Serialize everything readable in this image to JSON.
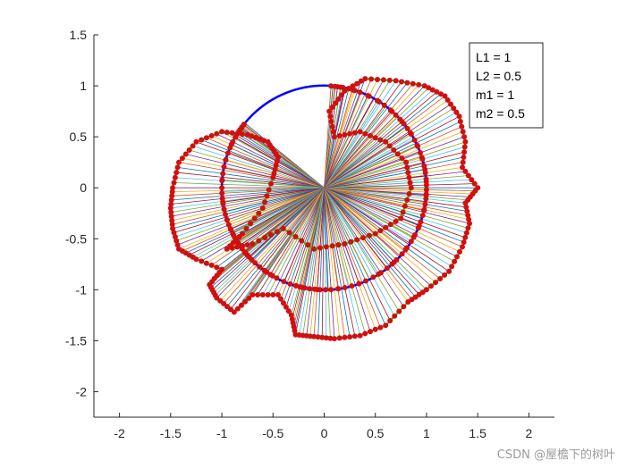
{
  "chart_data": {
    "type": "line",
    "title": "",
    "xlabel": "",
    "ylabel": "",
    "xlim": [
      -2.25,
      2.25
    ],
    "ylim": [
      -2.25,
      1.5
    ],
    "x_ticks": [
      -2,
      -1.5,
      -1,
      -0.5,
      0,
      0.5,
      1,
      1.5,
      2
    ],
    "x_tick_labels": [
      "-2",
      "-1.5",
      "-1",
      "-0.5",
      "0",
      "0.5",
      "1",
      "1.5",
      "2"
    ],
    "y_ticks": [
      1.5,
      1,
      0.5,
      0,
      -0.5,
      -1,
      -1.5,
      -2
    ],
    "y_tick_labels": [
      "1.5",
      "1",
      "0.5",
      "0",
      "-0.5",
      "-1",
      "-1.5",
      "-2"
    ],
    "grid": false,
    "legend_position": "top-right",
    "annotation_lines": [
      "L1 = 1",
      "L2 = 0.5",
      "m1 = 1",
      "m2 = 0.5"
    ],
    "parameters": {
      "L1": 1,
      "L2": 0.5,
      "m1": 1,
      "m2": 0.5
    },
    "pivot": [
      0,
      0
    ],
    "series": [
      {
        "kind": "circle",
        "center": [
          0,
          0
        ],
        "radius": 1,
        "color": "#0000ff"
      },
      {
        "kind": "trajectory",
        "color": "#00e000",
        "points": [
          [
            0.4,
            1.07
          ],
          [
            0.7,
            1.05
          ],
          [
            0.98,
            1.0
          ],
          [
            1.18,
            0.9
          ],
          [
            1.32,
            0.7
          ],
          [
            1.38,
            0.45
          ],
          [
            1.35,
            0.2
          ],
          [
            1.5,
            0.0
          ],
          [
            1.38,
            -0.15
          ],
          [
            1.42,
            -0.35
          ],
          [
            1.35,
            -0.58
          ],
          [
            1.22,
            -0.82
          ],
          [
            1.0,
            -1.0
          ],
          [
            0.82,
            -1.12
          ],
          [
            0.6,
            -1.35
          ],
          [
            0.35,
            -1.45
          ],
          [
            0.1,
            -1.48
          ],
          [
            -0.1,
            -1.46
          ],
          [
            -0.28,
            -1.44
          ],
          [
            -0.32,
            -1.25
          ],
          [
            -0.45,
            -1.05
          ],
          [
            -0.7,
            -1.05
          ],
          [
            -0.88,
            -1.22
          ],
          [
            -1.05,
            -1.08
          ],
          [
            -1.12,
            -0.95
          ],
          [
            -1.0,
            -0.8
          ],
          [
            -1.25,
            -0.7
          ],
          [
            -1.42,
            -0.6
          ],
          [
            -1.48,
            -0.4
          ],
          [
            -1.5,
            -0.2
          ],
          [
            -1.48,
            0.0
          ],
          [
            -1.42,
            0.25
          ],
          [
            -1.25,
            0.45
          ],
          [
            -1.0,
            0.55
          ],
          [
            -0.75,
            0.52
          ],
          [
            -0.55,
            0.45
          ],
          [
            -0.45,
            0.3
          ],
          [
            -0.5,
            0.1
          ],
          [
            -0.6,
            -0.2
          ],
          [
            -0.8,
            -0.45
          ],
          [
            -0.95,
            -0.6
          ],
          [
            -0.7,
            -0.55
          ],
          [
            -0.4,
            -0.4
          ],
          [
            -0.1,
            -0.6
          ],
          [
            0.2,
            -0.55
          ],
          [
            0.5,
            -0.45
          ],
          [
            0.75,
            -0.3
          ],
          [
            0.85,
            0.0
          ],
          [
            0.8,
            0.25
          ],
          [
            0.6,
            0.45
          ],
          [
            0.35,
            0.55
          ],
          [
            0.1,
            0.5
          ],
          [
            0.05,
            0.75
          ],
          [
            0.2,
            0.95
          ],
          [
            0.4,
            1.07
          ]
        ]
      }
    ]
  },
  "watermark": "CSDN @屋檐下的树叶"
}
